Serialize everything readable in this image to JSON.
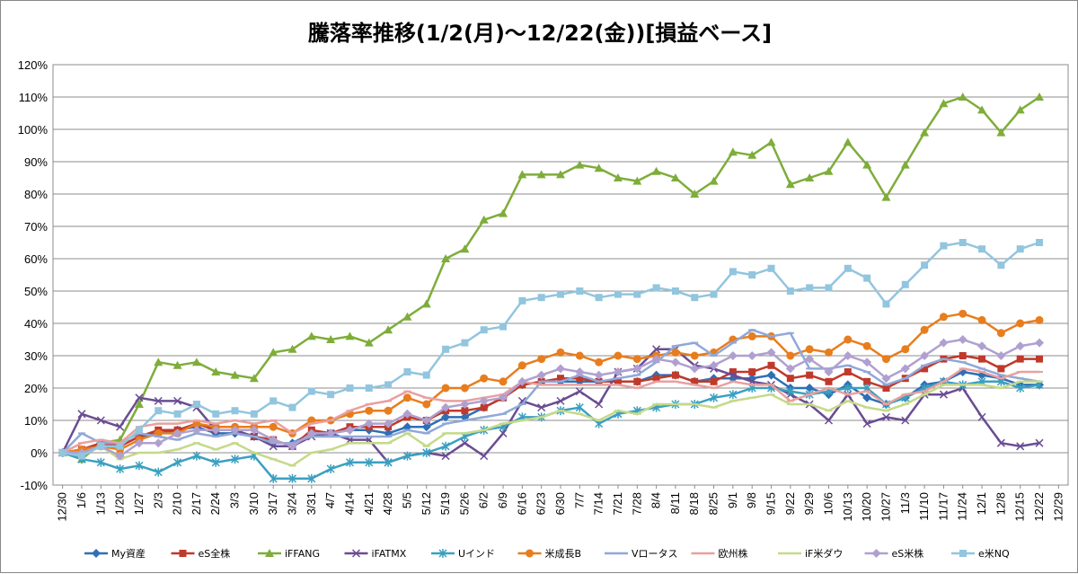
{
  "chart_data": {
    "type": "line",
    "title": "騰落率推移(1/2(月)～12/22(金))[損益ベース]",
    "xlabel": "",
    "ylabel": "",
    "ylim": [
      -10,
      120
    ],
    "yticks": [
      -10,
      0,
      10,
      20,
      30,
      40,
      50,
      60,
      70,
      80,
      90,
      100,
      110,
      120
    ],
    "ytick_labels": [
      "-10%",
      "0%",
      "10%",
      "20%",
      "30%",
      "40%",
      "50%",
      "60%",
      "70%",
      "80%",
      "90%",
      "100%",
      "110%",
      "120%"
    ],
    "grid": true,
    "legend_position": "bottom",
    "categories": [
      "12/30",
      "1/6",
      "1/13",
      "1/20",
      "1/27",
      "2/3",
      "2/10",
      "2/17",
      "2/24",
      "3/3",
      "3/10",
      "3/17",
      "3/24",
      "3/31",
      "4/7",
      "4/14",
      "4/21",
      "4/28",
      "5/5",
      "5/12",
      "5/19",
      "5/26",
      "6/2",
      "6/9",
      "6/16",
      "6/23",
      "6/30",
      "7/7",
      "7/14",
      "7/21",
      "7/28",
      "8/4",
      "8/11",
      "8/18",
      "8/25",
      "9/1",
      "9/8",
      "9/15",
      "9/22",
      "9/29",
      "10/6",
      "10/13",
      "10/20",
      "10/27",
      "11/3",
      "11/10",
      "11/17",
      "11/24",
      "12/1",
      "12/8",
      "12/15",
      "12/22",
      "12/29"
    ],
    "series": [
      {
        "name": "My資産",
        "color": "#2e6fb5",
        "marker": "diamond",
        "values": [
          0,
          0,
          3,
          2,
          5,
          6,
          7,
          8,
          6,
          6,
          5,
          3,
          3,
          6,
          6,
          7,
          7,
          6,
          8,
          8,
          11,
          11,
          14,
          17,
          21,
          22,
          22,
          22,
          22,
          22,
          22,
          24,
          24,
          22,
          23,
          23,
          23,
          24,
          20,
          20,
          18,
          21,
          17,
          15,
          17,
          21,
          22,
          25,
          24,
          23,
          21,
          21,
          null
        ]
      },
      {
        "name": "eS全株",
        "color": "#c0392b",
        "marker": "square",
        "values": [
          0,
          1,
          3,
          2,
          5,
          7,
          7,
          9,
          7,
          7,
          5,
          4,
          2,
          7,
          6,
          8,
          8,
          8,
          11,
          10,
          13,
          13,
          14,
          17,
          21,
          22,
          23,
          23,
          22,
          22,
          22,
          23,
          24,
          22,
          22,
          25,
          25,
          27,
          23,
          24,
          22,
          25,
          22,
          20,
          23,
          26,
          29,
          30,
          29,
          26,
          29,
          29,
          null
        ]
      },
      {
        "name": "iFFANG",
        "color": "#7ead3a",
        "marker": "triangle",
        "values": [
          0,
          -2,
          3,
          4,
          15,
          28,
          27,
          28,
          25,
          24,
          23,
          31,
          32,
          36,
          35,
          36,
          34,
          38,
          42,
          46,
          60,
          63,
          72,
          74,
          86,
          86,
          86,
          89,
          88,
          85,
          84,
          87,
          85,
          80,
          84,
          93,
          92,
          96,
          83,
          85,
          87,
          96,
          89,
          79,
          89,
          99,
          108,
          110,
          106,
          99,
          106,
          110,
          null
        ]
      },
      {
        "name": "iFATMX",
        "color": "#6a4c93",
        "marker": "x",
        "values": [
          0,
          12,
          10,
          8,
          17,
          16,
          16,
          14,
          7,
          7,
          5,
          2,
          2,
          5,
          6,
          4,
          4,
          -3,
          -1,
          0,
          -1,
          3,
          -1,
          6,
          16,
          14,
          16,
          19,
          15,
          25,
          26,
          32,
          32,
          27,
          26,
          24,
          22,
          21,
          18,
          15,
          10,
          18,
          9,
          11,
          10,
          18,
          18,
          20,
          11,
          3,
          2,
          3,
          null
        ]
      },
      {
        "name": "Uインド",
        "color": "#3aa0c0",
        "marker": "asterisk",
        "values": [
          0,
          -2,
          -3,
          -5,
          -4,
          -6,
          -3,
          -1,
          -3,
          -2,
          -1,
          -8,
          -8,
          -8,
          -5,
          -3,
          -3,
          -3,
          -1,
          0,
          2,
          5,
          7,
          8,
          11,
          11,
          13,
          14,
          9,
          12,
          13,
          14,
          15,
          15,
          17,
          18,
          20,
          20,
          19,
          18,
          19,
          20,
          20,
          15,
          17,
          20,
          22,
          21,
          22,
          22,
          20,
          21,
          null
        ]
      },
      {
        "name": "米成長B",
        "color": "#e87d1e",
        "marker": "circle",
        "values": [
          0,
          1,
          2,
          1,
          4,
          6,
          6,
          9,
          8,
          8,
          8,
          8,
          6,
          10,
          10,
          12,
          13,
          13,
          17,
          15,
          20,
          20,
          23,
          22,
          27,
          29,
          31,
          30,
          28,
          30,
          29,
          30,
          31,
          30,
          31,
          35,
          36,
          36,
          30,
          32,
          31,
          35,
          33,
          29,
          32,
          38,
          42,
          43,
          41,
          37,
          40,
          41,
          null
        ]
      },
      {
        "name": "Vロータス",
        "color": "#8fa8d8",
        "marker": "dash",
        "values": [
          0,
          6,
          3,
          3,
          6,
          5,
          4,
          6,
          5,
          6,
          5,
          3,
          3,
          5,
          5,
          5,
          5,
          5,
          7,
          6,
          9,
          10,
          11,
          12,
          15,
          22,
          22,
          24,
          22,
          23,
          24,
          28,
          33,
          34,
          30,
          34,
          38,
          36,
          37,
          26,
          26,
          27,
          25,
          21,
          23,
          27,
          29,
          28,
          26,
          24,
          23,
          22,
          null
        ]
      },
      {
        "name": "欧州株",
        "color": "#e8a0a0",
        "marker": "dash",
        "values": [
          0,
          3,
          4,
          3,
          8,
          9,
          9,
          10,
          9,
          10,
          9,
          10,
          6,
          9,
          10,
          13,
          15,
          16,
          19,
          17,
          16,
          16,
          17,
          18,
          22,
          21,
          21,
          21,
          21,
          21,
          20,
          22,
          22,
          21,
          20,
          22,
          21,
          21,
          16,
          18,
          20,
          18,
          19,
          15,
          18,
          19,
          22,
          26,
          25,
          23,
          25,
          25,
          null
        ]
      },
      {
        "name": "iF米ダウ",
        "color": "#c5d98a",
        "marker": "dash",
        "values": [
          0,
          0,
          2,
          -2,
          0,
          0,
          1,
          3,
          1,
          3,
          0,
          -2,
          -4,
          0,
          1,
          3,
          3,
          3,
          6,
          2,
          6,
          6,
          7,
          9,
          10,
          11,
          13,
          12,
          10,
          13,
          12,
          15,
          15,
          15,
          14,
          16,
          17,
          18,
          15,
          15,
          13,
          16,
          14,
          13,
          15,
          18,
          21,
          21,
          21,
          20,
          22,
          22,
          null
        ]
      },
      {
        "name": "eS米株",
        "color": "#b0a0d0",
        "marker": "diamond",
        "values": [
          0,
          0,
          2,
          -1,
          3,
          3,
          6,
          7,
          7,
          7,
          7,
          4,
          2,
          6,
          6,
          7,
          9,
          9,
          12,
          10,
          14,
          15,
          16,
          17,
          22,
          24,
          26,
          25,
          24,
          25,
          26,
          29,
          28,
          26,
          27,
          30,
          30,
          31,
          26,
          29,
          25,
          30,
          28,
          23,
          26,
          30,
          34,
          35,
          33,
          30,
          33,
          34,
          null
        ]
      },
      {
        "name": "e米NQ",
        "color": "#92c5de",
        "marker": "square",
        "values": [
          0,
          -1,
          2,
          2,
          7,
          13,
          12,
          15,
          12,
          13,
          12,
          16,
          14,
          19,
          18,
          20,
          20,
          21,
          25,
          24,
          32,
          34,
          38,
          39,
          47,
          48,
          49,
          50,
          48,
          49,
          49,
          51,
          50,
          48,
          49,
          56,
          55,
          57,
          50,
          51,
          51,
          57,
          54,
          46,
          52,
          58,
          64,
          65,
          63,
          58,
          63,
          65,
          null
        ]
      }
    ]
  }
}
